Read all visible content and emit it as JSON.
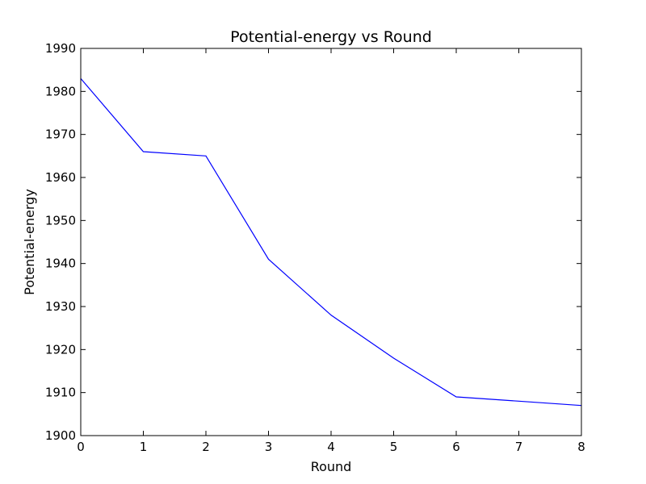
{
  "chart_data": {
    "type": "line",
    "title": "Potential-energy vs Round",
    "xlabel": "Round",
    "ylabel": "Potential-energy",
    "xlim": [
      0,
      8
    ],
    "ylim": [
      1900,
      1990
    ],
    "xticks": [
      0,
      1,
      2,
      3,
      4,
      5,
      6,
      7,
      8
    ],
    "yticks": [
      1900,
      1910,
      1920,
      1930,
      1940,
      1950,
      1960,
      1970,
      1980,
      1990
    ],
    "grid": false,
    "series": [
      {
        "color": "#0000ff",
        "x": [
          0,
          1,
          2,
          3,
          4,
          5,
          6,
          7,
          8
        ],
        "y": [
          1983,
          1966,
          1965,
          1941,
          1928,
          1918,
          1909,
          1908,
          1907
        ]
      }
    ]
  }
}
